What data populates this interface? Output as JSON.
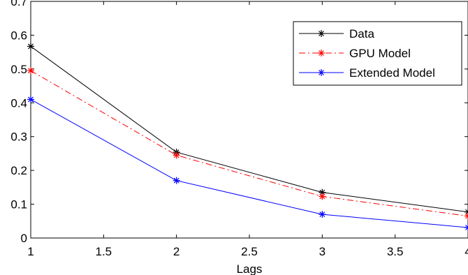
{
  "chart_data": {
    "type": "line",
    "title": "",
    "xlabel": "Lags",
    "ylabel": "",
    "xlim": [
      1,
      4
    ],
    "ylim": [
      0,
      0.7
    ],
    "x_ticks": [
      "1",
      "1.5",
      "2",
      "2.5",
      "3",
      "3.5",
      "4"
    ],
    "y_ticks": [
      "0",
      "0.1",
      "0.2",
      "0.3",
      "0.4",
      "0.5",
      "0.6",
      "0.7"
    ],
    "grid": false,
    "legend_position": "top-right",
    "x": [
      1,
      2,
      3,
      4
    ],
    "series": [
      {
        "name": "Data",
        "values": [
          0.567,
          0.254,
          0.135,
          0.077
        ],
        "color": "#000000",
        "dash": "solid",
        "marker": "asterisk"
      },
      {
        "name": "GPU Model",
        "values": [
          0.495,
          0.245,
          0.123,
          0.065
        ],
        "color": "#ff0000",
        "dash": "dashdot",
        "marker": "asterisk"
      },
      {
        "name": "Extended Model",
        "values": [
          0.41,
          0.17,
          0.07,
          0.031
        ],
        "color": "#0000ff",
        "dash": "solid",
        "marker": "asterisk"
      }
    ]
  }
}
